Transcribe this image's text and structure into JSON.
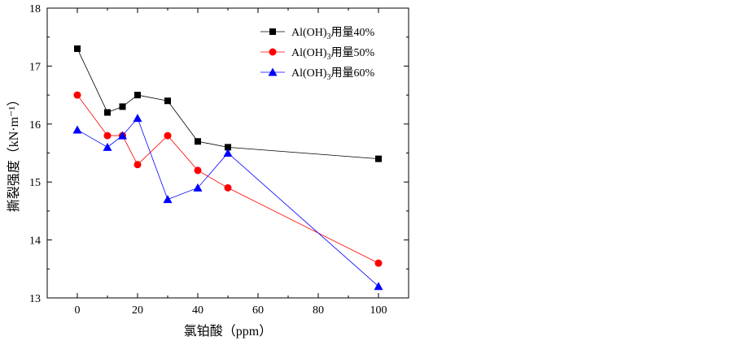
{
  "chart_data": {
    "type": "line",
    "title": "",
    "xlabel": "氯铂酸（ppm）",
    "ylabel": "撕裂强度（kN·m⁻¹）",
    "xlim": [
      -10,
      110
    ],
    "ylim": [
      13,
      18
    ],
    "xticks": [
      0,
      20,
      40,
      60,
      80,
      100
    ],
    "yticks": [
      13,
      14,
      15,
      16,
      17,
      18
    ],
    "x_minor_ticks": [
      -10,
      10,
      30,
      50,
      70,
      90,
      110
    ],
    "y_minor_ticks": [
      13.5,
      14.5,
      15.5,
      16.5,
      17.5
    ],
    "grid": false,
    "legend_position": "top-right",
    "series": [
      {
        "name": "Al(OH)₃用量40%",
        "legend_prefix": "Al(OH)",
        "legend_sub": "3",
        "legend_suffix": "用量40%",
        "color": "#000000",
        "marker": "square",
        "x": [
          0,
          10,
          15,
          20,
          30,
          40,
          50,
          100
        ],
        "y": [
          17.3,
          16.2,
          16.3,
          16.5,
          16.4,
          15.7,
          15.6,
          15.4
        ]
      },
      {
        "name": "Al(OH)₃用量50%",
        "legend_prefix": "Al(OH)",
        "legend_sub": "3",
        "legend_suffix": "用量50%",
        "color": "#ff0000",
        "marker": "circle",
        "x": [
          0,
          10,
          15,
          20,
          30,
          40,
          50,
          100
        ],
        "y": [
          16.5,
          15.8,
          15.8,
          15.3,
          15.8,
          15.2,
          14.9,
          13.6
        ]
      },
      {
        "name": "Al(OH)₃用量60%",
        "legend_prefix": "Al(OH)",
        "legend_sub": "3",
        "legend_suffix": "用量60%",
        "color": "#0000ff",
        "marker": "triangle",
        "x": [
          0,
          10,
          15,
          20,
          30,
          40,
          50,
          100
        ],
        "y": [
          15.9,
          15.6,
          15.8,
          16.1,
          14.7,
          14.9,
          15.5,
          13.2
        ]
      }
    ]
  }
}
